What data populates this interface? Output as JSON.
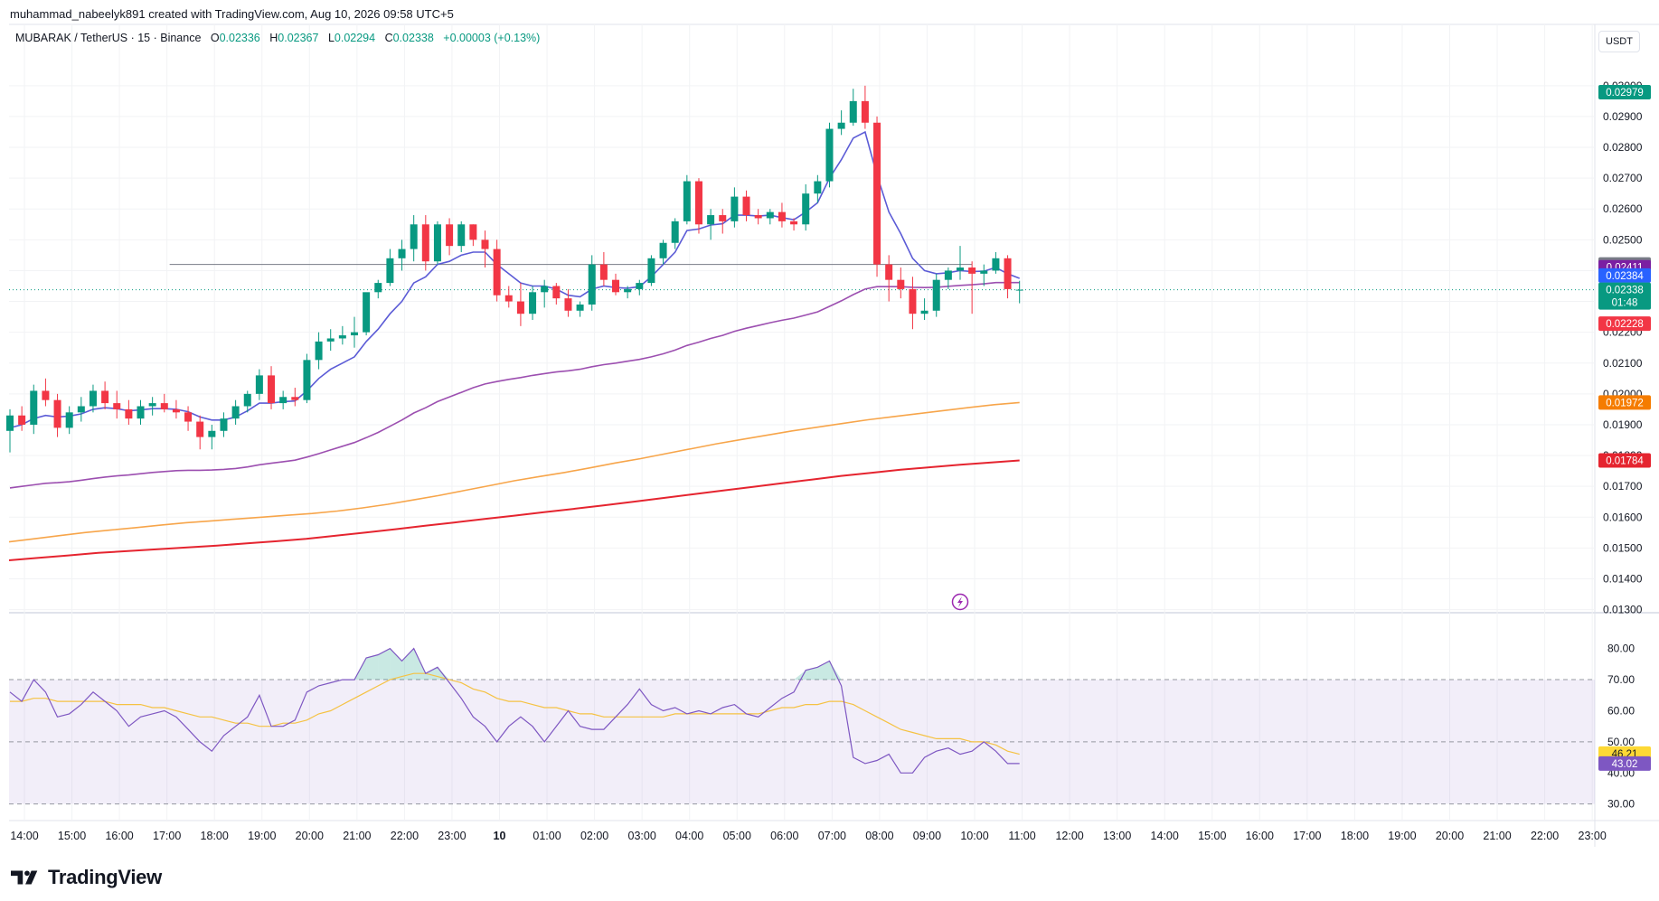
{
  "header": {
    "attribution": "muhammad_nabeelyk891 created with TradingView.com, Aug 10, 2026 09:58 UTC+5"
  },
  "legend": {
    "symbol": "MUBARAK / TetherUS · 15 · Binance",
    "open_label": "O",
    "open": "0.02336",
    "high_label": "H",
    "high": "0.02367",
    "low_label": "L",
    "low": "0.02294",
    "close_label": "C",
    "close": "0.02338",
    "change": "+0.00003 (+0.13%)"
  },
  "currency_button": "USDT",
  "brand": {
    "name": "TradingView",
    "logo_icon": "tradingview-logo-icon"
  },
  "flash_icon": "lightning-icon",
  "colors": {
    "up": "#089981",
    "down": "#f23645",
    "ema_fast": "#5b5bd6",
    "ema_mid": "#9c4fb0",
    "ema_slow": "#f7a54a",
    "ema_long": "#e5242f",
    "rsi": "#7e57c2",
    "rsi_ma": "#f5c243"
  },
  "chart_data": [
    {
      "type": "candlestick",
      "title": "MUBARAK / TetherUS · 15 · Binance",
      "x_tick_labels": [
        "14:00",
        "15:00",
        "16:00",
        "17:00",
        "18:00",
        "19:00",
        "20:00",
        "21:00",
        "22:00",
        "23:00",
        "10",
        "01:00",
        "02:00",
        "03:00",
        "04:00",
        "05:00",
        "06:00",
        "07:00",
        "08:00",
        "09:00",
        "10:00",
        "11:00",
        "12:00",
        "13:00",
        "14:00",
        "15:00",
        "16:00",
        "17:00",
        "18:00",
        "19:00",
        "20:00",
        "21:00",
        "22:00",
        "23:00"
      ],
      "y_tick_labels": [
        "0.03000",
        "0.02900",
        "0.02800",
        "0.02700",
        "0.02600",
        "0.02500",
        "0.02400",
        "0.02300",
        "0.02200",
        "0.02100",
        "0.02000",
        "0.01900",
        "0.01800",
        "0.01700",
        "0.01600",
        "0.01500",
        "0.01400",
        "0.01300"
      ],
      "ylim": [
        0.0129,
        0.0302
      ],
      "candles": [
        {
          "o": 0.0188,
          "h": 0.0195,
          "l": 0.0181,
          "c": 0.0193
        },
        {
          "o": 0.0193,
          "h": 0.0196,
          "l": 0.0188,
          "c": 0.019
        },
        {
          "o": 0.019,
          "h": 0.0203,
          "l": 0.0187,
          "c": 0.0201
        },
        {
          "o": 0.0201,
          "h": 0.0205,
          "l": 0.0196,
          "c": 0.0198
        },
        {
          "o": 0.0198,
          "h": 0.02,
          "l": 0.0186,
          "c": 0.0189
        },
        {
          "o": 0.0189,
          "h": 0.0196,
          "l": 0.0187,
          "c": 0.0194
        },
        {
          "o": 0.0194,
          "h": 0.0199,
          "l": 0.0191,
          "c": 0.0196
        },
        {
          "o": 0.0196,
          "h": 0.0203,
          "l": 0.0194,
          "c": 0.0201
        },
        {
          "o": 0.0201,
          "h": 0.0204,
          "l": 0.0195,
          "c": 0.0197
        },
        {
          "o": 0.0197,
          "h": 0.0201,
          "l": 0.0192,
          "c": 0.0195
        },
        {
          "o": 0.0195,
          "h": 0.0198,
          "l": 0.019,
          "c": 0.0192
        },
        {
          "o": 0.0192,
          "h": 0.0198,
          "l": 0.019,
          "c": 0.0196
        },
        {
          "o": 0.0196,
          "h": 0.0199,
          "l": 0.0193,
          "c": 0.0197
        },
        {
          "o": 0.0197,
          "h": 0.02,
          "l": 0.0194,
          "c": 0.0195
        },
        {
          "o": 0.0195,
          "h": 0.0198,
          "l": 0.0192,
          "c": 0.0194
        },
        {
          "o": 0.0194,
          "h": 0.0196,
          "l": 0.0188,
          "c": 0.0191
        },
        {
          "o": 0.0191,
          "h": 0.0193,
          "l": 0.0182,
          "c": 0.0186
        },
        {
          "o": 0.0186,
          "h": 0.019,
          "l": 0.0182,
          "c": 0.0188
        },
        {
          "o": 0.0188,
          "h": 0.0194,
          "l": 0.0186,
          "c": 0.0192
        },
        {
          "o": 0.0192,
          "h": 0.0198,
          "l": 0.019,
          "c": 0.0196
        },
        {
          "o": 0.0196,
          "h": 0.0201,
          "l": 0.0194,
          "c": 0.02
        },
        {
          "o": 0.02,
          "h": 0.0208,
          "l": 0.0198,
          "c": 0.0206
        },
        {
          "o": 0.0206,
          "h": 0.0209,
          "l": 0.0195,
          "c": 0.0197
        },
        {
          "o": 0.0197,
          "h": 0.0201,
          "l": 0.0195,
          "c": 0.0199
        },
        {
          "o": 0.0199,
          "h": 0.0202,
          "l": 0.0196,
          "c": 0.0198
        },
        {
          "o": 0.0198,
          "h": 0.0213,
          "l": 0.0197,
          "c": 0.0211
        },
        {
          "o": 0.0211,
          "h": 0.022,
          "l": 0.0208,
          "c": 0.0217
        },
        {
          "o": 0.0217,
          "h": 0.0221,
          "l": 0.0214,
          "c": 0.0218
        },
        {
          "o": 0.0218,
          "h": 0.0222,
          "l": 0.0216,
          "c": 0.0219
        },
        {
          "o": 0.0219,
          "h": 0.0225,
          "l": 0.0215,
          "c": 0.022
        },
        {
          "o": 0.022,
          "h": 0.0232,
          "l": 0.0219,
          "c": 0.0233
        },
        {
          "o": 0.0233,
          "h": 0.0237,
          "l": 0.0231,
          "c": 0.0236
        },
        {
          "o": 0.0236,
          "h": 0.0247,
          "l": 0.0235,
          "c": 0.0244
        },
        {
          "o": 0.0244,
          "h": 0.025,
          "l": 0.024,
          "c": 0.0247
        },
        {
          "o": 0.0247,
          "h": 0.0258,
          "l": 0.0243,
          "c": 0.0255
        },
        {
          "o": 0.0255,
          "h": 0.0258,
          "l": 0.024,
          "c": 0.0243
        },
        {
          "o": 0.0243,
          "h": 0.0256,
          "l": 0.0242,
          "c": 0.0255
        },
        {
          "o": 0.0255,
          "h": 0.0257,
          "l": 0.0245,
          "c": 0.0248
        },
        {
          "o": 0.0248,
          "h": 0.0256,
          "l": 0.0246,
          "c": 0.0255
        },
        {
          "o": 0.0255,
          "h": 0.0255,
          "l": 0.0248,
          "c": 0.025
        },
        {
          "o": 0.025,
          "h": 0.0253,
          "l": 0.0241,
          "c": 0.0247
        },
        {
          "o": 0.0247,
          "h": 0.025,
          "l": 0.023,
          "c": 0.0232
        },
        {
          "o": 0.0232,
          "h": 0.0235,
          "l": 0.0228,
          "c": 0.023
        },
        {
          "o": 0.023,
          "h": 0.0236,
          "l": 0.0222,
          "c": 0.0226
        },
        {
          "o": 0.0226,
          "h": 0.0235,
          "l": 0.0224,
          "c": 0.0233
        },
        {
          "o": 0.0233,
          "h": 0.0237,
          "l": 0.0228,
          "c": 0.0235
        },
        {
          "o": 0.0235,
          "h": 0.0236,
          "l": 0.0229,
          "c": 0.0231
        },
        {
          "o": 0.0231,
          "h": 0.0234,
          "l": 0.0225,
          "c": 0.0227
        },
        {
          "o": 0.0227,
          "h": 0.023,
          "l": 0.0225,
          "c": 0.0229
        },
        {
          "o": 0.0229,
          "h": 0.0245,
          "l": 0.0227,
          "c": 0.0242
        },
        {
          "o": 0.0242,
          "h": 0.0246,
          "l": 0.0235,
          "c": 0.0237
        },
        {
          "o": 0.0237,
          "h": 0.0239,
          "l": 0.0232,
          "c": 0.0233
        },
        {
          "o": 0.0233,
          "h": 0.0235,
          "l": 0.0231,
          "c": 0.0234
        },
        {
          "o": 0.0234,
          "h": 0.0237,
          "l": 0.0232,
          "c": 0.0236
        },
        {
          "o": 0.0236,
          "h": 0.0245,
          "l": 0.0235,
          "c": 0.0244
        },
        {
          "o": 0.0244,
          "h": 0.025,
          "l": 0.0242,
          "c": 0.0249
        },
        {
          "o": 0.0249,
          "h": 0.0257,
          "l": 0.0247,
          "c": 0.0256
        },
        {
          "o": 0.0256,
          "h": 0.0271,
          "l": 0.0255,
          "c": 0.0269
        },
        {
          "o": 0.0269,
          "h": 0.027,
          "l": 0.0252,
          "c": 0.0255
        },
        {
          "o": 0.0255,
          "h": 0.026,
          "l": 0.025,
          "c": 0.0258
        },
        {
          "o": 0.0258,
          "h": 0.026,
          "l": 0.0252,
          "c": 0.0256
        },
        {
          "o": 0.0256,
          "h": 0.0267,
          "l": 0.0254,
          "c": 0.0264
        },
        {
          "o": 0.0264,
          "h": 0.0266,
          "l": 0.0256,
          "c": 0.0258
        },
        {
          "o": 0.0258,
          "h": 0.026,
          "l": 0.0255,
          "c": 0.0257
        },
        {
          "o": 0.0257,
          "h": 0.026,
          "l": 0.0255,
          "c": 0.0259
        },
        {
          "o": 0.0259,
          "h": 0.0262,
          "l": 0.0254,
          "c": 0.0256
        },
        {
          "o": 0.0256,
          "h": 0.0257,
          "l": 0.0253,
          "c": 0.0255
        },
        {
          "o": 0.0255,
          "h": 0.0268,
          "l": 0.0253,
          "c": 0.0265
        },
        {
          "o": 0.0265,
          "h": 0.0271,
          "l": 0.0262,
          "c": 0.0269
        },
        {
          "o": 0.0269,
          "h": 0.0288,
          "l": 0.0267,
          "c": 0.0286
        },
        {
          "o": 0.0286,
          "h": 0.0292,
          "l": 0.0284,
          "c": 0.0288
        },
        {
          "o": 0.0288,
          "h": 0.0299,
          "l": 0.0287,
          "c": 0.0295
        },
        {
          "o": 0.0295,
          "h": 0.03,
          "l": 0.0286,
          "c": 0.0288
        },
        {
          "o": 0.0288,
          "h": 0.029,
          "l": 0.0238,
          "c": 0.0242
        },
        {
          "o": 0.0242,
          "h": 0.0245,
          "l": 0.023,
          "c": 0.0237
        },
        {
          "o": 0.0237,
          "h": 0.0241,
          "l": 0.0231,
          "c": 0.0234
        },
        {
          "o": 0.0234,
          "h": 0.0238,
          "l": 0.0221,
          "c": 0.0226
        },
        {
          "o": 0.0226,
          "h": 0.0231,
          "l": 0.0224,
          "c": 0.0227
        },
        {
          "o": 0.0227,
          "h": 0.0239,
          "l": 0.0225,
          "c": 0.0237
        },
        {
          "o": 0.0237,
          "h": 0.0241,
          "l": 0.0234,
          "c": 0.024
        },
        {
          "o": 0.024,
          "h": 0.0248,
          "l": 0.0237,
          "c": 0.0241
        },
        {
          "o": 0.0241,
          "h": 0.0243,
          "l": 0.0226,
          "c": 0.0239
        },
        {
          "o": 0.0239,
          "h": 0.0242,
          "l": 0.0235,
          "c": 0.024
        },
        {
          "o": 0.024,
          "h": 0.0246,
          "l": 0.0239,
          "c": 0.0244
        },
        {
          "o": 0.0244,
          "h": 0.0245,
          "l": 0.0231,
          "c": 0.0234
        },
        {
          "o": 0.02336,
          "h": 0.02367,
          "l": 0.02294,
          "c": 0.02338
        }
      ],
      "ema_fast": [
        0.0189,
        0.019,
        0.0192,
        0.0193,
        0.01925,
        0.01928,
        0.01935,
        0.0195,
        0.01955,
        0.01952,
        0.01945,
        0.01948,
        0.01952,
        0.01952,
        0.0195,
        0.01942,
        0.01925,
        0.01915,
        0.01915,
        0.01925,
        0.01945,
        0.0197,
        0.0197,
        0.01975,
        0.01977,
        0.0201,
        0.0205,
        0.0208,
        0.021,
        0.0212,
        0.0217,
        0.0221,
        0.0226,
        0.023,
        0.0236,
        0.0238,
        0.0242,
        0.0243,
        0.0245,
        0.0246,
        0.0246,
        0.0242,
        0.0239,
        0.0236,
        0.0235,
        0.0235,
        0.0234,
        0.0232,
        0.02315,
        0.0234,
        0.0235,
        0.02345,
        0.02343,
        0.02348,
        0.0238,
        0.0242,
        0.0246,
        0.0253,
        0.02535,
        0.02548,
        0.02552,
        0.0258,
        0.0258,
        0.02577,
        0.0258,
        0.02572,
        0.02565,
        0.0259,
        0.0262,
        0.027,
        0.0276,
        0.0283,
        0.0285,
        0.0271,
        0.0259,
        0.0252,
        0.0244,
        0.024,
        0.0239,
        0.02393,
        0.024,
        0.02397,
        0.02398,
        0.0241,
        0.0239,
        0.02375
      ],
      "ema_mid": [
        0.01695,
        0.017,
        0.01705,
        0.0171,
        0.01712,
        0.01715,
        0.0172,
        0.01725,
        0.0173,
        0.01734,
        0.01737,
        0.01741,
        0.01745,
        0.01748,
        0.01751,
        0.01752,
        0.01752,
        0.01753,
        0.01755,
        0.01758,
        0.01763,
        0.0177,
        0.01775,
        0.0178,
        0.01785,
        0.01795,
        0.01806,
        0.01818,
        0.0183,
        0.01842,
        0.01858,
        0.01875,
        0.01895,
        0.01915,
        0.01938,
        0.01955,
        0.01975,
        0.0199,
        0.02005,
        0.0202,
        0.02032,
        0.0204,
        0.02047,
        0.02053,
        0.0206,
        0.02066,
        0.02071,
        0.02075,
        0.0208,
        0.02088,
        0.02095,
        0.021,
        0.02106,
        0.02112,
        0.0212,
        0.0213,
        0.02142,
        0.02157,
        0.02168,
        0.0218,
        0.0219,
        0.02203,
        0.02213,
        0.02222,
        0.02231,
        0.02239,
        0.02246,
        0.02256,
        0.02266,
        0.02284,
        0.02302,
        0.02322,
        0.0234,
        0.02348,
        0.02348,
        0.02348,
        0.02346,
        0.02345,
        0.02346,
        0.02349,
        0.02352,
        0.02354,
        0.02357,
        0.02361,
        0.02361,
        0.02361
      ],
      "ema_slow": [
        0.0152,
        0.0153,
        0.0154,
        0.0155,
        0.01558,
        0.01566,
        0.01574,
        0.01582,
        0.01588,
        0.01594,
        0.016,
        0.01606,
        0.01612,
        0.0162,
        0.0163,
        0.01642,
        0.01656,
        0.0167,
        0.01686,
        0.01702,
        0.01718,
        0.01732,
        0.01745,
        0.0176,
        0.01776,
        0.0179,
        0.01806,
        0.01822,
        0.01838,
        0.01852,
        0.01866,
        0.0188,
        0.01892,
        0.01904,
        0.01916,
        0.01926,
        0.01936,
        0.01946,
        0.01956,
        0.01965,
        0.01972
      ],
      "ema_long": [
        0.0146,
        0.01468,
        0.01476,
        0.01484,
        0.0149,
        0.01496,
        0.01502,
        0.01508,
        0.01515,
        0.01522,
        0.0153,
        0.0154,
        0.0155,
        0.01561,
        0.01572,
        0.01583,
        0.01594,
        0.01605,
        0.01616,
        0.01627,
        0.01638,
        0.0165,
        0.01662,
        0.01674,
        0.01686,
        0.01698,
        0.0171,
        0.01722,
        0.01734,
        0.01744,
        0.01754,
        0.01762,
        0.0177,
        0.01777,
        0.01784
      ],
      "position": {
        "take_profit": 0.02979,
        "entry": 0.0242,
        "stop_loss": 0.02228,
        "start_time": "10:00",
        "end_time": "17:00"
      },
      "current_price_line": 0.02338,
      "price_labels": [
        {
          "text": "0.02979",
          "value": 0.02979,
          "bg": "#089981"
        },
        {
          "text": "0.02420",
          "value": 0.0242,
          "bg": "#787b86"
        },
        {
          "text": "0.02411",
          "value": 0.02411,
          "bg": "#7b1fa2"
        },
        {
          "text": "0.02384",
          "value": 0.02384,
          "bg": "#2962ff"
        },
        {
          "text": "0.02338",
          "value": 0.02338,
          "bg": "#089981",
          "sub": "01:48"
        },
        {
          "text": "0.02228",
          "value": 0.02228,
          "bg": "#f23645"
        },
        {
          "text": "0.01972",
          "value": 0.01972,
          "bg": "#f57c00"
        },
        {
          "text": "0.01784",
          "value": 0.01784,
          "bg": "#e5242f"
        }
      ]
    },
    {
      "type": "line",
      "title": "RSI",
      "y_tick_labels": [
        "80.00",
        "70.00",
        "60.00",
        "50.00",
        "40.00",
        "30.00"
      ],
      "ylim": [
        27,
        86
      ],
      "levels": {
        "upper": 70,
        "middle": 50,
        "lower": 30
      },
      "rsi": [
        66,
        63,
        70,
        66,
        58,
        59,
        62,
        66,
        63,
        60,
        55,
        58,
        59,
        60,
        58,
        54,
        50,
        47,
        52,
        55,
        58,
        65,
        55,
        55,
        57,
        66,
        68,
        69,
        70,
        70,
        77,
        78,
        80,
        76,
        80,
        72,
        74,
        69,
        64,
        58,
        55,
        50,
        55,
        58,
        55,
        50,
        55,
        60,
        55,
        54,
        54,
        58,
        62,
        67,
        62,
        60,
        61,
        59,
        60,
        59,
        61,
        62,
        59,
        58,
        61,
        64,
        66,
        73,
        74,
        76,
        68,
        45,
        43,
        44,
        46,
        40,
        40,
        45,
        47,
        48,
        46,
        47,
        50,
        47,
        43,
        43
      ],
      "rsi_ma": [
        63,
        63,
        64,
        64,
        63,
        63,
        63,
        63,
        63,
        62,
        62,
        62,
        61,
        61,
        60,
        59,
        58,
        58,
        57,
        56,
        56,
        55,
        55,
        56,
        56,
        57,
        59,
        60,
        62,
        64,
        66,
        68,
        70,
        71,
        72,
        72,
        71,
        70,
        69,
        67,
        66,
        64,
        63,
        63,
        62,
        61,
        61,
        60,
        59,
        59,
        58,
        58,
        58,
        58,
        58,
        58,
        59,
        59,
        59,
        59,
        59,
        59,
        59,
        59,
        60,
        61,
        61,
        62,
        62,
        63,
        63,
        62,
        60,
        58,
        56,
        54,
        53,
        52,
        51,
        51,
        51,
        50,
        50,
        49,
        47,
        46
      ],
      "labels": [
        {
          "text": "46.21",
          "value": 46.21,
          "bg": "#fdd835",
          "fg": "#131722"
        },
        {
          "text": "43.02",
          "value": 43.02,
          "bg": "#7e57c2",
          "fg": "#ffffff"
        }
      ]
    }
  ]
}
